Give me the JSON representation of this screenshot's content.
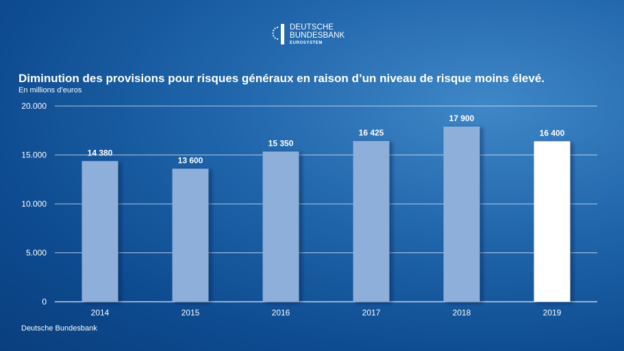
{
  "logo": {
    "line1": "DEUTSCHE",
    "line2": "BUNDESBANK",
    "line3": "EUROSYSTEM"
  },
  "colors": {
    "bar": "#8eafda",
    "highlight_bar": "#ffffff",
    "grid": "#ffffff"
  },
  "chart_data": {
    "type": "bar",
    "title": "Diminution des provisions pour risques généraux en raison d’un niveau de risque moins élevé.",
    "subtitle": "En millions d’euros",
    "source": "Deutsche Bundesbank",
    "categories": [
      "2014",
      "2015",
      "2016",
      "2017",
      "2018",
      "2019"
    ],
    "values": [
      14380,
      13600,
      15350,
      16425,
      17900,
      16400
    ],
    "value_labels": [
      "14 380",
      "13 600",
      "15 350",
      "16 425",
      "17 900",
      "16 400"
    ],
    "highlight_index": 5,
    "ylim": [
      0,
      20000
    ],
    "yticks": [
      0,
      5000,
      10000,
      15000,
      20000
    ],
    "ytick_labels": [
      "0",
      "5.000",
      "10.000",
      "15.000",
      "20.000"
    ],
    "grid": true,
    "legend": "none"
  }
}
